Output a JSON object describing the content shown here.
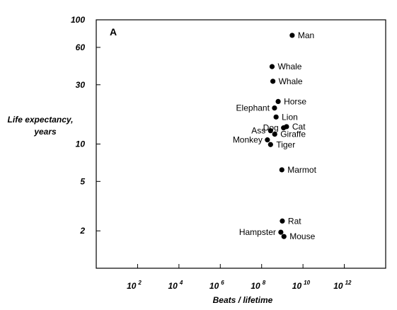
{
  "chart_data": {
    "type": "scatter",
    "panel_label": "A",
    "xlabel": "Beats / lifetime",
    "ylabel_lines": [
      "Life expectancy,",
      "years"
    ],
    "x_scale": "log",
    "y_scale": "log",
    "xlim": [
      1,
      100000000000000.0
    ],
    "ylim": [
      1,
      100
    ],
    "x_ticks": [
      {
        "value": 100,
        "base": "10",
        "exp": "2"
      },
      {
        "value": 10000,
        "base": "10",
        "exp": "4"
      },
      {
        "value": 1000000,
        "base": "10",
        "exp": "6"
      },
      {
        "value": 100000000,
        "base": "10",
        "exp": "8"
      },
      {
        "value": 10000000000,
        "base": "10",
        "exp": "10"
      },
      {
        "value": 1000000000000,
        "base": "10",
        "exp": "12"
      }
    ],
    "y_ticks": [
      {
        "value": 100,
        "label": "100"
      },
      {
        "value": 60,
        "label": "60"
      },
      {
        "value": 30,
        "label": "30"
      },
      {
        "value": 10,
        "label": "10"
      },
      {
        "value": 5,
        "label": "5"
      },
      {
        "value": 2,
        "label": "2"
      }
    ],
    "grid": false,
    "points": [
      {
        "name": "Man",
        "x": 3000000000.0,
        "y": 75,
        "label_side": "right"
      },
      {
        "name": "Whale",
        "x": 320000000.0,
        "y": 42,
        "label_side": "right"
      },
      {
        "name": "Whale",
        "x": 350000000.0,
        "y": 32,
        "label_side": "right"
      },
      {
        "name": "Horse",
        "x": 630000000.0,
        "y": 22,
        "label_side": "right"
      },
      {
        "name": "Elephant",
        "x": 420000000.0,
        "y": 19.5,
        "label_side": "left"
      },
      {
        "name": "Lion",
        "x": 500000000.0,
        "y": 16.5,
        "label_side": "right"
      },
      {
        "name": "Dog",
        "x": 1150000000.0,
        "y": 13.5,
        "label_side": "left"
      },
      {
        "name": "Cat",
        "x": 1600000000.0,
        "y": 13.8,
        "label_side": "right"
      },
      {
        "name": "Ass",
        "x": 270000000.0,
        "y": 12.8,
        "label_side": "left"
      },
      {
        "name": "Giraffe",
        "x": 430000000.0,
        "y": 12,
        "label_side": "right"
      },
      {
        "name": "Monkey",
        "x": 190000000.0,
        "y": 10.8,
        "label_side": "left"
      },
      {
        "name": "Tiger",
        "x": 270000000.0,
        "y": 9.9,
        "label_side": "right"
      },
      {
        "name": "Marmot",
        "x": 950000000.0,
        "y": 6.2,
        "label_side": "right"
      },
      {
        "name": "Rat",
        "x": 1000000000.0,
        "y": 2.4,
        "label_side": "right"
      },
      {
        "name": "Hampster",
        "x": 850000000.0,
        "y": 1.95,
        "label_side": "left"
      },
      {
        "name": "Mouse",
        "x": 1200000000.0,
        "y": 1.8,
        "label_side": "right"
      }
    ]
  }
}
